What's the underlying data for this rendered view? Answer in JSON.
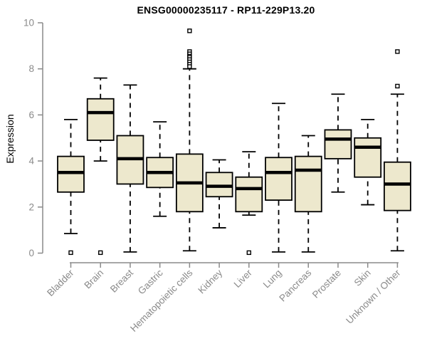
{
  "chart_data": {
    "type": "boxplot",
    "title": "ENSG00000235117 - RP11-229P13.20",
    "ylabel": "Expression",
    "xlabel": "",
    "ylim": [
      0,
      10
    ],
    "yticks": [
      0,
      2,
      4,
      6,
      8,
      10
    ],
    "grid": false,
    "legend": "none",
    "categories": [
      "Bladder",
      "Brain",
      "Breast",
      "Gastric",
      "Hematopoietic cells",
      "Kidney",
      "Liver",
      "Lung",
      "Pancreas",
      "Prostate",
      "Skin",
      "Unknown / Other"
    ],
    "series": [
      {
        "category": "Bladder",
        "whisker_low": 0.85,
        "q1": 2.65,
        "median": 3.5,
        "q3": 4.2,
        "whisker_high": 5.8,
        "outliers": [
          0.02
        ]
      },
      {
        "category": "Brain",
        "whisker_low": 4.0,
        "q1": 4.9,
        "median": 6.1,
        "q3": 6.7,
        "whisker_high": 7.6,
        "outliers": [
          0.02
        ]
      },
      {
        "category": "Breast",
        "whisker_low": 0.05,
        "q1": 3.0,
        "median": 4.1,
        "q3": 5.1,
        "whisker_high": 7.3,
        "outliers": []
      },
      {
        "category": "Gastric",
        "whisker_low": 1.6,
        "q1": 2.85,
        "median": 3.5,
        "q3": 4.15,
        "whisker_high": 5.7,
        "outliers": []
      },
      {
        "category": "Hematopoietic cells",
        "whisker_low": 0.1,
        "q1": 1.8,
        "median": 3.05,
        "q3": 4.3,
        "whisker_high": 8.0,
        "outliers": [
          9.65,
          8.75,
          8.65,
          8.55,
          8.5,
          8.4,
          8.3,
          8.2,
          8.1
        ]
      },
      {
        "category": "Kidney",
        "whisker_low": 1.1,
        "q1": 2.45,
        "median": 2.9,
        "q3": 3.5,
        "whisker_high": 4.05,
        "outliers": []
      },
      {
        "category": "Liver",
        "whisker_low": 1.65,
        "q1": 1.8,
        "median": 2.8,
        "q3": 3.3,
        "whisker_high": 4.4,
        "outliers": [
          0.02
        ]
      },
      {
        "category": "Lung",
        "whisker_low": 0.05,
        "q1": 2.3,
        "median": 3.5,
        "q3": 4.15,
        "whisker_high": 6.5,
        "outliers": []
      },
      {
        "category": "Pancreas",
        "whisker_low": 0.05,
        "q1": 1.8,
        "median": 3.6,
        "q3": 4.2,
        "whisker_high": 5.1,
        "outliers": []
      },
      {
        "category": "Prostate",
        "whisker_low": 2.65,
        "q1": 4.1,
        "median": 4.95,
        "q3": 5.35,
        "whisker_high": 6.9,
        "outliers": []
      },
      {
        "category": "Skin",
        "whisker_low": 2.1,
        "q1": 3.3,
        "median": 4.6,
        "q3": 5.0,
        "whisker_high": 5.8,
        "outliers": []
      },
      {
        "category": "Unknown / Other",
        "whisker_low": 0.1,
        "q1": 1.85,
        "median": 3.0,
        "q3": 3.95,
        "whisker_high": 6.9,
        "outliers": [
          8.75,
          7.25
        ]
      }
    ],
    "colors": {
      "box_fill": "#ede8cd",
      "box_stroke": "#000000",
      "median": "#000000",
      "whisker": "#000000",
      "outlier_stroke": "#000000",
      "axis": "#8a8a8a",
      "tick_label": "#8a8a8a",
      "title": "#000000"
    }
  }
}
